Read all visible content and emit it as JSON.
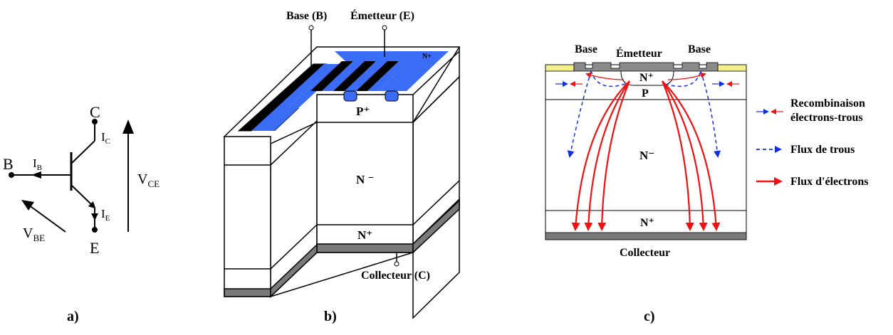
{
  "panel_a": {
    "label": "a)",
    "terminals": {
      "collector": "C",
      "base": "B",
      "emitter": "E"
    },
    "currents": {
      "ic_main": "I",
      "ic_sub": "C",
      "ib_main": "I",
      "ib_sub": "B",
      "ie_main": "I",
      "ie_sub": "E"
    },
    "voltages": {
      "vce_main": "V",
      "vce_sub": "CE",
      "vbe_main": "V",
      "vbe_sub": "BE"
    }
  },
  "panel_b": {
    "label": "b)",
    "base_terminal": "Base (B)",
    "emitter_terminal": "Émetteur (E)",
    "collector_terminal": "Collecteur (C)",
    "n_plus_top": "N+",
    "p_plus": "P⁺",
    "n_minus": "N ⁻",
    "n_plus_bottom": "N⁺",
    "colors": {
      "emitter_metal": "#3a6cf5",
      "base_metal": "#000000",
      "substrate_metal": "#7a7a7a"
    }
  },
  "panel_c": {
    "label": "c)",
    "base_left": "Base",
    "emitter": "Émetteur",
    "base_right": "Base",
    "n_plus_top": "N⁺",
    "p_region": "P",
    "n_minus": "N⁻",
    "n_plus_bottom": "N⁺",
    "collector": "Collecteur",
    "legend": {
      "recombination_line1": "Recombinaison",
      "recombination_line2": "électrons-trous",
      "hole_flow": "Flux de trous",
      "electron_flow": "Flux d'électrons"
    },
    "colors": {
      "oxide": "#f5ef8c",
      "hole_arrow": "#1030e0",
      "electron_arrow": "#f01010"
    }
  }
}
